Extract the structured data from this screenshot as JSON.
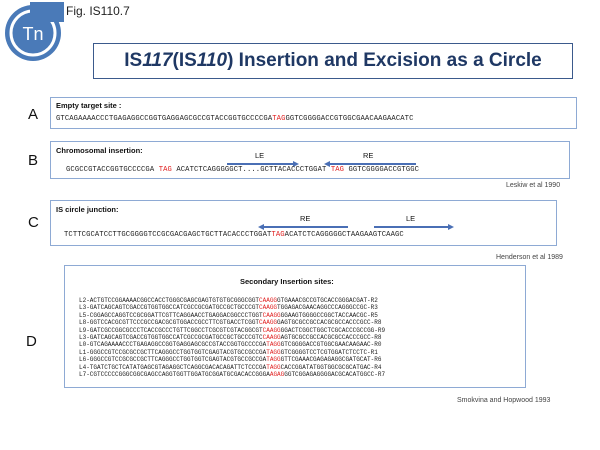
{
  "header": {
    "logo_text": "Tn",
    "fig_label": "Fig. IS110.7",
    "title_part1": "IS",
    "title_part1_num": "117",
    "title_part2": " (IS",
    "title_part2_num": "110",
    "title_part3": ") Insertion and Excision as a Circle"
  },
  "panels": {
    "A": {
      "letter": "A",
      "label": "Empty target site :",
      "seq_pre": "GTCAGAAAACCCTGAGAGGCCGGTGAGGAGCGCCGTACCGGTGCCCCGA",
      "seq_red": "TAG",
      "seq_post": "GGTCGGGGACCGTGGCGAACAAGAACATC"
    },
    "B": {
      "letter": "B",
      "label": "Chromosomal insertion:",
      "le_label": "LE",
      "re_label": "RE",
      "seq_1": "GCGCCGTACCGGTGCCCCGA ",
      "seq_red1": "TAG",
      "seq_2": " ACATCTCAGGGGGCT....GCTTACACCCTGGAT ",
      "seq_red2": "TAG",
      "seq_3": " GGTCGGGGACCGTGGC",
      "citation": "Leskiw et al 1990"
    },
    "C": {
      "letter": "C",
      "label": "IS circle junction:",
      "re_label": "RE",
      "le_label": "LE",
      "seq_pre": "TCTTCGCATCCTTGCGGGGTCCGCGACGAGCTGCTTACACCCTGGAT",
      "seq_red": "TAG",
      "seq_post": "ACATCTCAGGGGGCTAAGAAGTCAAGC",
      "citation": "Henderson et al 1989"
    },
    "D": {
      "letter": "D",
      "title": "Secondary Insertion sites:",
      "rows": [
        {
          "pre": "L2-ACTGTCCGGAAAACGGCCACCTGGGCGAGCGAGTGTGTGCGGGCGGT",
          "red": "CAAGG",
          "post": "GTGAAACGCCGTGCACCGGGACGAT-R2"
        },
        {
          "pre": "L3-GATCAGCAGTCGACCGTGGTGGCCATCGCCGCGATGCCGCTGCCCGT",
          "red": "CAAGG",
          "post": "TGGAGACGAACAGGCCCAGGGCCGC-R3"
        },
        {
          "pre": "L5-CGGAGCCAGGTCCGCGGATTCGTTCAGGAACCTGAGGACGGCCCTGGT",
          "red": "CAAGG",
          "post": "GGAAGTGGGGCCGGCTACCAACGC-R5"
        },
        {
          "pre": "L8-GGTCCACGCGTTCCCGCCGACGCGTGGACCGCCTTCGTGACCTCGGT",
          "red": "CAAGG",
          "post": "GAGTGCGCCGCCACGCGCCACCCGCC-R8"
        },
        {
          "pre": "L9-GATCGCCGGCGCCCTCACCGCCCTGTTCGGCCTCGCGTCGTACGGCGT",
          "red": "CAAGG",
          "post": "GGACTCGGCTGGCTCGCACCCGCCGG-R9"
        },
        {
          "pre": "L3-GATCAGCAGTCGACCGTGGTGGCCATCGCCGCGATGCCGCTGCCCGTC",
          "red": "CAAGG",
          "post": "AGTGCGCCGCCACGCGCCACCCGCC-R8"
        },
        {
          "pre": "L0-GTCAGAAAACCCTGAGAGGCCGGTGAGGAGCGCCGTACCGGTGCCCCGA",
          "red": "TAGG",
          "post": "GTCGGGGACCGTGGCGAACAAGAAC-R0"
        },
        {
          "pre": "L1-GGGCCGTCCGCGCCGCTTCAGGGCCTGGTGGTCGAGTACGTGCCGCCGA",
          "red": "TAGG",
          "post": "GTCGGGGTCCTCGTGGATCTCCTC-R1"
        },
        {
          "pre": "L6-GGGCCGTCCGCGCCGCTTCAGGGCCTGGTGGTCGAGTACGTGCCGCCGA",
          "red": "TAGG",
          "post": "GTTCGAAACGAGAGAGGCGATGCAT-R6"
        },
        {
          "pre": "L4-TGATCTGCTCATATGAGCGTAGAGGCTCAGGCGACACAGATTCTCCCGA",
          "red": "TAGG",
          "post": "CACCGGATATGGTGGCGCGCATGAC-R4"
        },
        {
          "pre": "L7-CGTCCCCCGGGCGGCGAGCCAGGTGGTTGGATGCGGATGCGACACCGGGA",
          "red": "AGAG",
          "post": "GGTCGGAGAGGGGACGCACATGGCC-R7"
        }
      ],
      "citation": "Smokvina and Hopwood  1993"
    }
  },
  "colors": {
    "title_border": "#3b5a8c",
    "title_text": "#1f3864",
    "box_border": "#8eaad4",
    "arrow": "#4a6fb5",
    "highlight": "#e02020",
    "logo_blue": "#4a7ab8"
  }
}
